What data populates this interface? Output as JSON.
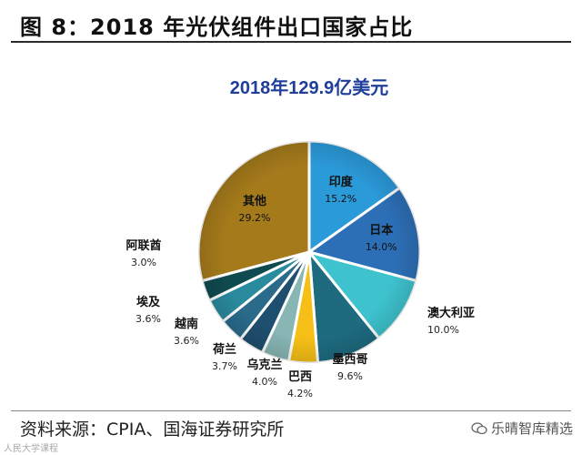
{
  "figure": {
    "title": "图 8：2018 年光伏组件出口国家占比",
    "source": "资料来源：CPIA、国海证券研究所",
    "watermark": "乐晴智库精选",
    "watermark_small": "人民大学课程"
  },
  "chart_data": {
    "type": "pie",
    "title": "2018年129.9亿美元",
    "slices": [
      {
        "label": "印度",
        "value": 15.2,
        "value_text": "15.2%",
        "color": "#2B9AD9"
      },
      {
        "label": "日本",
        "value": 14.0,
        "value_text": "14.0%",
        "color": "#2D6FB6"
      },
      {
        "label": "澳大利亚",
        "value": 10.0,
        "value_text": "10.0%",
        "color": "#3EC3CE"
      },
      {
        "label": "墨西哥",
        "value": 9.6,
        "value_text": "9.6%",
        "color": "#1E6B80"
      },
      {
        "label": "巴西",
        "value": 4.2,
        "value_text": "4.2%",
        "color": "#F5BF17"
      },
      {
        "label": "乌克兰",
        "value": 4.0,
        "value_text": "4.0%",
        "color": "#87B6B4"
      },
      {
        "label": "荷兰",
        "value": 3.7,
        "value_text": "3.7%",
        "color": "#1E4F6E"
      },
      {
        "label": "越南",
        "value": 3.6,
        "value_text": "3.6%",
        "color": "#2A6B8C"
      },
      {
        "label": "埃及",
        "value": 3.6,
        "value_text": "3.6%",
        "color": "#2A8A9E"
      },
      {
        "label": "阿联酋",
        "value": 3.0,
        "value_text": "3.0%",
        "color": "#0F4A50"
      },
      {
        "label": "其他",
        "value": 29.2,
        "value_text": "29.2%",
        "color": "#A47A1B"
      }
    ],
    "legend": "none"
  }
}
